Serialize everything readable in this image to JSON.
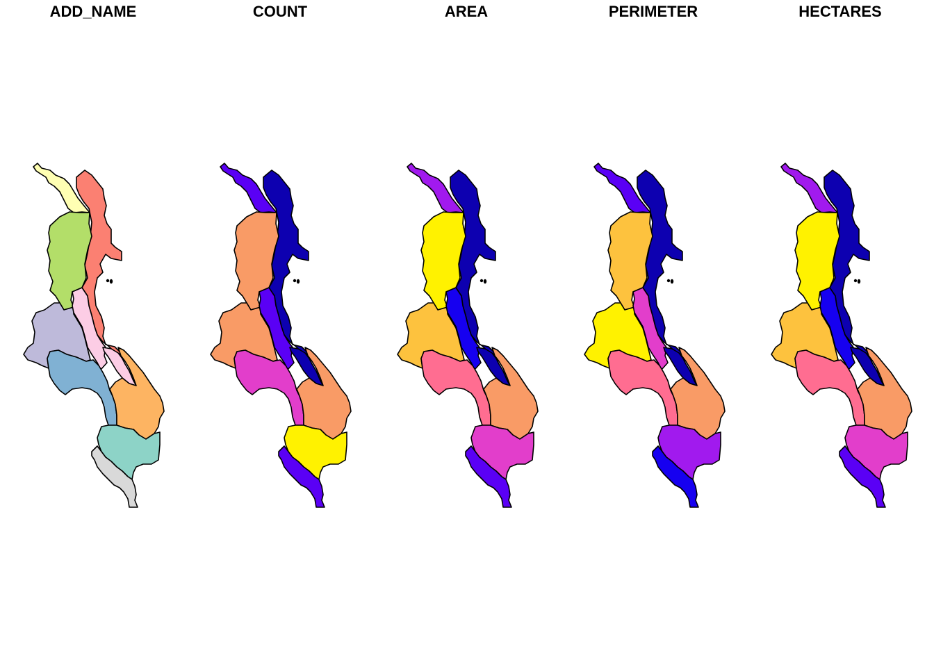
{
  "panels": [
    {
      "title": "ADD_NAME",
      "fills": {
        "far_north": "#FFFFB3",
        "north_lake": "#FB8072",
        "central_west": "#B3DE69",
        "lake_strip": "#FCCDE5",
        "west": "#BEBADA",
        "lake_channel": "#FCCDE5",
        "south_central": "#80B1D3",
        "southeast": "#FDB462",
        "south": "#8DD3C7",
        "far_south": "#D9D9D9"
      }
    },
    {
      "title": "COUNT",
      "fills": {
        "far_north": "#5A00F5",
        "north_lake": "#0D00B0",
        "central_west": "#F99B66",
        "lake_strip": "#5A00F5",
        "west": "#F99B66",
        "lake_channel": "#0D00B0",
        "south_central": "#E23ECB",
        "southeast": "#F99B66",
        "south": "#FFF200",
        "far_south": "#5A00F5"
      }
    },
    {
      "title": "AREA",
      "fills": {
        "far_north": "#A11AEE",
        "north_lake": "#0D00B0",
        "central_west": "#FFF200",
        "lake_strip": "#1600F0",
        "west": "#FDC23E",
        "lake_channel": "#0D00B0",
        "south_central": "#FF6D91",
        "southeast": "#F99B66",
        "south": "#E23ECB",
        "far_south": "#5A00F5"
      }
    },
    {
      "title": "PERIMETER",
      "fills": {
        "far_north": "#5A00F5",
        "north_lake": "#0D00B0",
        "central_west": "#FDC23E",
        "lake_strip": "#E23ECB",
        "west": "#FFF200",
        "lake_channel": "#0D00B0",
        "south_central": "#FF6D91",
        "southeast": "#F99B66",
        "south": "#A11AEE",
        "far_south": "#1600F0"
      }
    },
    {
      "title": "HECTARES",
      "fills": {
        "far_north": "#A11AEE",
        "north_lake": "#0D00B0",
        "central_west": "#FFF200",
        "lake_strip": "#1600F0",
        "west": "#FDC23E",
        "lake_channel": "#0D00B0",
        "south_central": "#FF6D91",
        "southeast": "#F99B66",
        "south": "#E23ECB",
        "far_south": "#5A00F5"
      }
    }
  ]
}
